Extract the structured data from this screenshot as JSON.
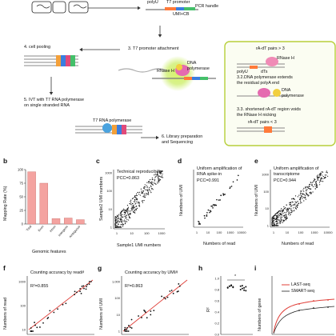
{
  "schematic": {
    "polyU": "polyU",
    "t7_promoter": "T7 promoter",
    "umi_cb": "UMI+CB",
    "pcr_handle": "PCR handle",
    "step4": "4. cell pooling",
    "step3": "3. T7 promoter attachment",
    "dna_polymerase": "DNA polymerase",
    "rnase_h": "RNase H",
    "step5_l1": "5. IVT  with T7 RNA polymerase",
    "step5_l2": "on single stranded RNA",
    "t7_rna_polymerase": "T7 RNA polymerase",
    "step6_l1": "6. Library preparation",
    "step6_l2": "and Sequencing",
    "side_pairs_gt": "rA-dT pairs > 3",
    "side_rnaseh": "RNase H",
    "side_polyu": "polyU",
    "side_dts": "dTs",
    "side_32_l1": "3.2.DNA polymerase extends",
    "side_32_l2": "the residual polyA end",
    "side_dna_pol": "DNA",
    "side_dna_pol2": "polymerase",
    "side_33_l1": "3.3. shortened rA-dT region voids",
    "side_33_l2": "the RNase H nicking",
    "side_pairs_lt": "rA-dT pairs < 3"
  },
  "panels": {
    "b": {
      "letter": "b",
      "ylabel": "Mapping Rate (%)",
      "xlabel": "Genomic features",
      "caption": "Genomic features"
    },
    "c": {
      "letter": "c",
      "note1": "Technical reproducibility",
      "note2": "PCC=0.863",
      "xlabel": "Sample1 UMI numbers",
      "ylabel": "Sample2 UMI numbers"
    },
    "d": {
      "letter": "d",
      "note1": "Uniform amplification of",
      "note2": "RNA spike-in",
      "note3": "PCC=0.991",
      "xlabel": "Numbers of read",
      "ylabel": "Numbers of UMI"
    },
    "e": {
      "letter": "e",
      "note1": "Uniform amplification of",
      "note2": "transcriptome",
      "note3": "PCC=0.944",
      "xlabel": "Numbers of read",
      "ylabel": "Numbers of UMI"
    },
    "f": {
      "letter": "f",
      "note1": "Counting accuracy by read#",
      "note2": "R²=0.855",
      "ylabel": "Numbers of read"
    },
    "g": {
      "letter": "g",
      "note1": "Counting accuracy by UMI#",
      "note2": "R²=0.863",
      "ylabel": "Numbers of UMI"
    },
    "h": {
      "letter": "h",
      "ylabel": "R²",
      "sig": "*"
    },
    "i": {
      "letter": "i",
      "legend1": "LAST-seq",
      "legend2": "SMART-seq",
      "ylabel": "Numbers of gene"
    }
  },
  "colors": {
    "bar": "#f4a3a0",
    "bar_edge": "#c76e6a",
    "red_line": "#e0403a",
    "green_glow": "#c7ec5a",
    "pink": "#e56bb0",
    "blue": "#4aa3df",
    "side_box": "#b7cf3a"
  },
  "chart_data": [
    {
      "type": "bar",
      "id": "b",
      "ylabel": "Mapping Rate (%)",
      "xlabel": "Genomic features",
      "categories": [
        "Total",
        "Exon",
        "Intron",
        "Intergenic",
        "Ambiguous"
      ],
      "values": [
        96,
        75,
        10,
        11,
        8
      ],
      "ylim": [
        0,
        100
      ],
      "yticks": [
        0,
        25,
        50,
        75,
        100
      ]
    },
    {
      "type": "scatter",
      "id": "c",
      "xlabel": "Sample1 UMI numbers",
      "ylabel": "Sample2 UMI numbers",
      "pcc": 0.863,
      "ytick_labels": [
        "1",
        "10",
        "100",
        "1000"
      ],
      "xtick_labels": [
        "1",
        "10",
        "100",
        "1000"
      ]
    },
    {
      "type": "scatter",
      "id": "d",
      "xlabel": "Numbers of read",
      "ylabel": "Numbers of UMI",
      "pcc": 0.991,
      "xtick_labels": [
        "1",
        "10",
        "100",
        "1000",
        "10000"
      ]
    },
    {
      "type": "scatter",
      "id": "e",
      "xlabel": "Numbers of read",
      "ylabel": "Numbers of UMI",
      "pcc": 0.944,
      "xtick_labels": [
        "1",
        "10",
        "100",
        "1000",
        "10000"
      ],
      "ytick_labels": [
        "1",
        "10",
        "100",
        "1000"
      ]
    },
    {
      "type": "scatter",
      "id": "f",
      "ylabel": "Numbers of read",
      "r2": 0.855,
      "ytick_labels": [
        "10",
        "100",
        "1000"
      ]
    },
    {
      "type": "scatter",
      "id": "g",
      "ylabel": "Numbers of UMI",
      "r2": 0.863,
      "ytick_labels": [
        "1",
        "10",
        "100",
        "1,000"
      ]
    },
    {
      "type": "scatter",
      "id": "h",
      "ylabel": "R²",
      "ytick_labels": [
        "1.0",
        "0.8",
        "0.6",
        "0.4",
        "0.2",
        "0.0"
      ],
      "groups": [
        {
          "values": [
            0.84,
            0.86,
            0.87,
            0.85,
            0.83,
            0.86,
            0.88,
            0.84
          ]
        },
        {
          "values": [
            0.86,
            0.82,
            0.79,
            0.85,
            0.8,
            0.87,
            0.83,
            0.78
          ]
        }
      ]
    },
    {
      "type": "line",
      "id": "i",
      "ylabel": "Numbers of gene",
      "series": [
        {
          "name": "LAST-seq"
        },
        {
          "name": "SMART-seq"
        }
      ]
    }
  ]
}
